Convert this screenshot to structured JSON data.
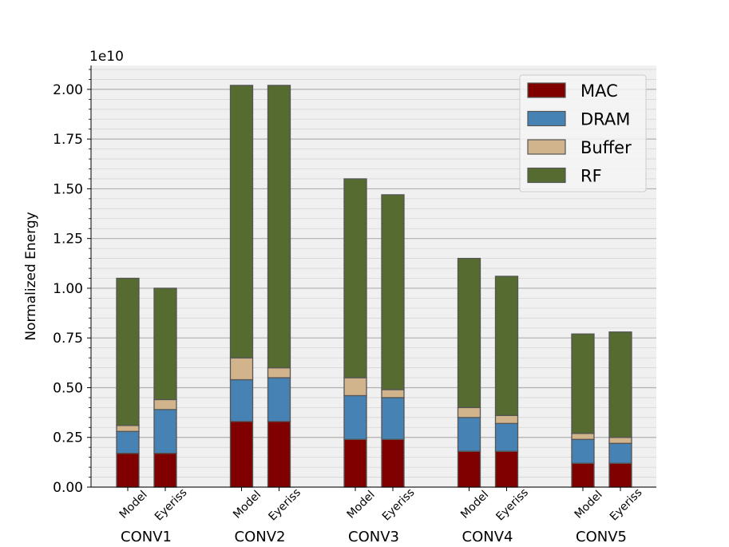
{
  "chart_data": {
    "type": "bar",
    "stacked": true,
    "title": "",
    "xlabel": "",
    "ylabel": "Normalized Energy",
    "y_scale_label": "1e10",
    "ylim": [
      0,
      2.12
    ],
    "yticks": [
      0.0,
      0.25,
      0.5,
      0.75,
      1.0,
      1.25,
      1.5,
      1.75,
      2.0
    ],
    "ytick_labels": [
      "0.00",
      "0.25",
      "0.50",
      "0.75",
      "1.00",
      "1.25",
      "1.50",
      "1.75",
      "2.00"
    ],
    "grid": true,
    "legend_position": "top-right",
    "groups": [
      "CONV1",
      "CONV2",
      "CONV3",
      "CONV4",
      "CONV5"
    ],
    "bar_labels": [
      "Model",
      "Eyeriss"
    ],
    "series": [
      {
        "name": "MAC",
        "color": "#800000",
        "values": [
          [
            0.17,
            0.17
          ],
          [
            0.33,
            0.33
          ],
          [
            0.24,
            0.24
          ],
          [
            0.18,
            0.18
          ],
          [
            0.12,
            0.12
          ]
        ]
      },
      {
        "name": "DRAM",
        "color": "#4682b4",
        "values": [
          [
            0.11,
            0.22
          ],
          [
            0.21,
            0.22
          ],
          [
            0.22,
            0.21
          ],
          [
            0.17,
            0.14
          ],
          [
            0.12,
            0.1
          ]
        ]
      },
      {
        "name": "Buffer",
        "color": "#d2b48c",
        "values": [
          [
            0.03,
            0.05
          ],
          [
            0.11,
            0.05
          ],
          [
            0.09,
            0.04
          ],
          [
            0.05,
            0.04
          ],
          [
            0.03,
            0.03
          ]
        ]
      },
      {
        "name": "RF",
        "color": "#556b2f",
        "values": [
          [
            0.74,
            0.56
          ],
          [
            1.37,
            1.42
          ],
          [
            1.0,
            0.98
          ],
          [
            0.75,
            0.7
          ],
          [
            0.5,
            0.53
          ]
        ]
      }
    ]
  }
}
